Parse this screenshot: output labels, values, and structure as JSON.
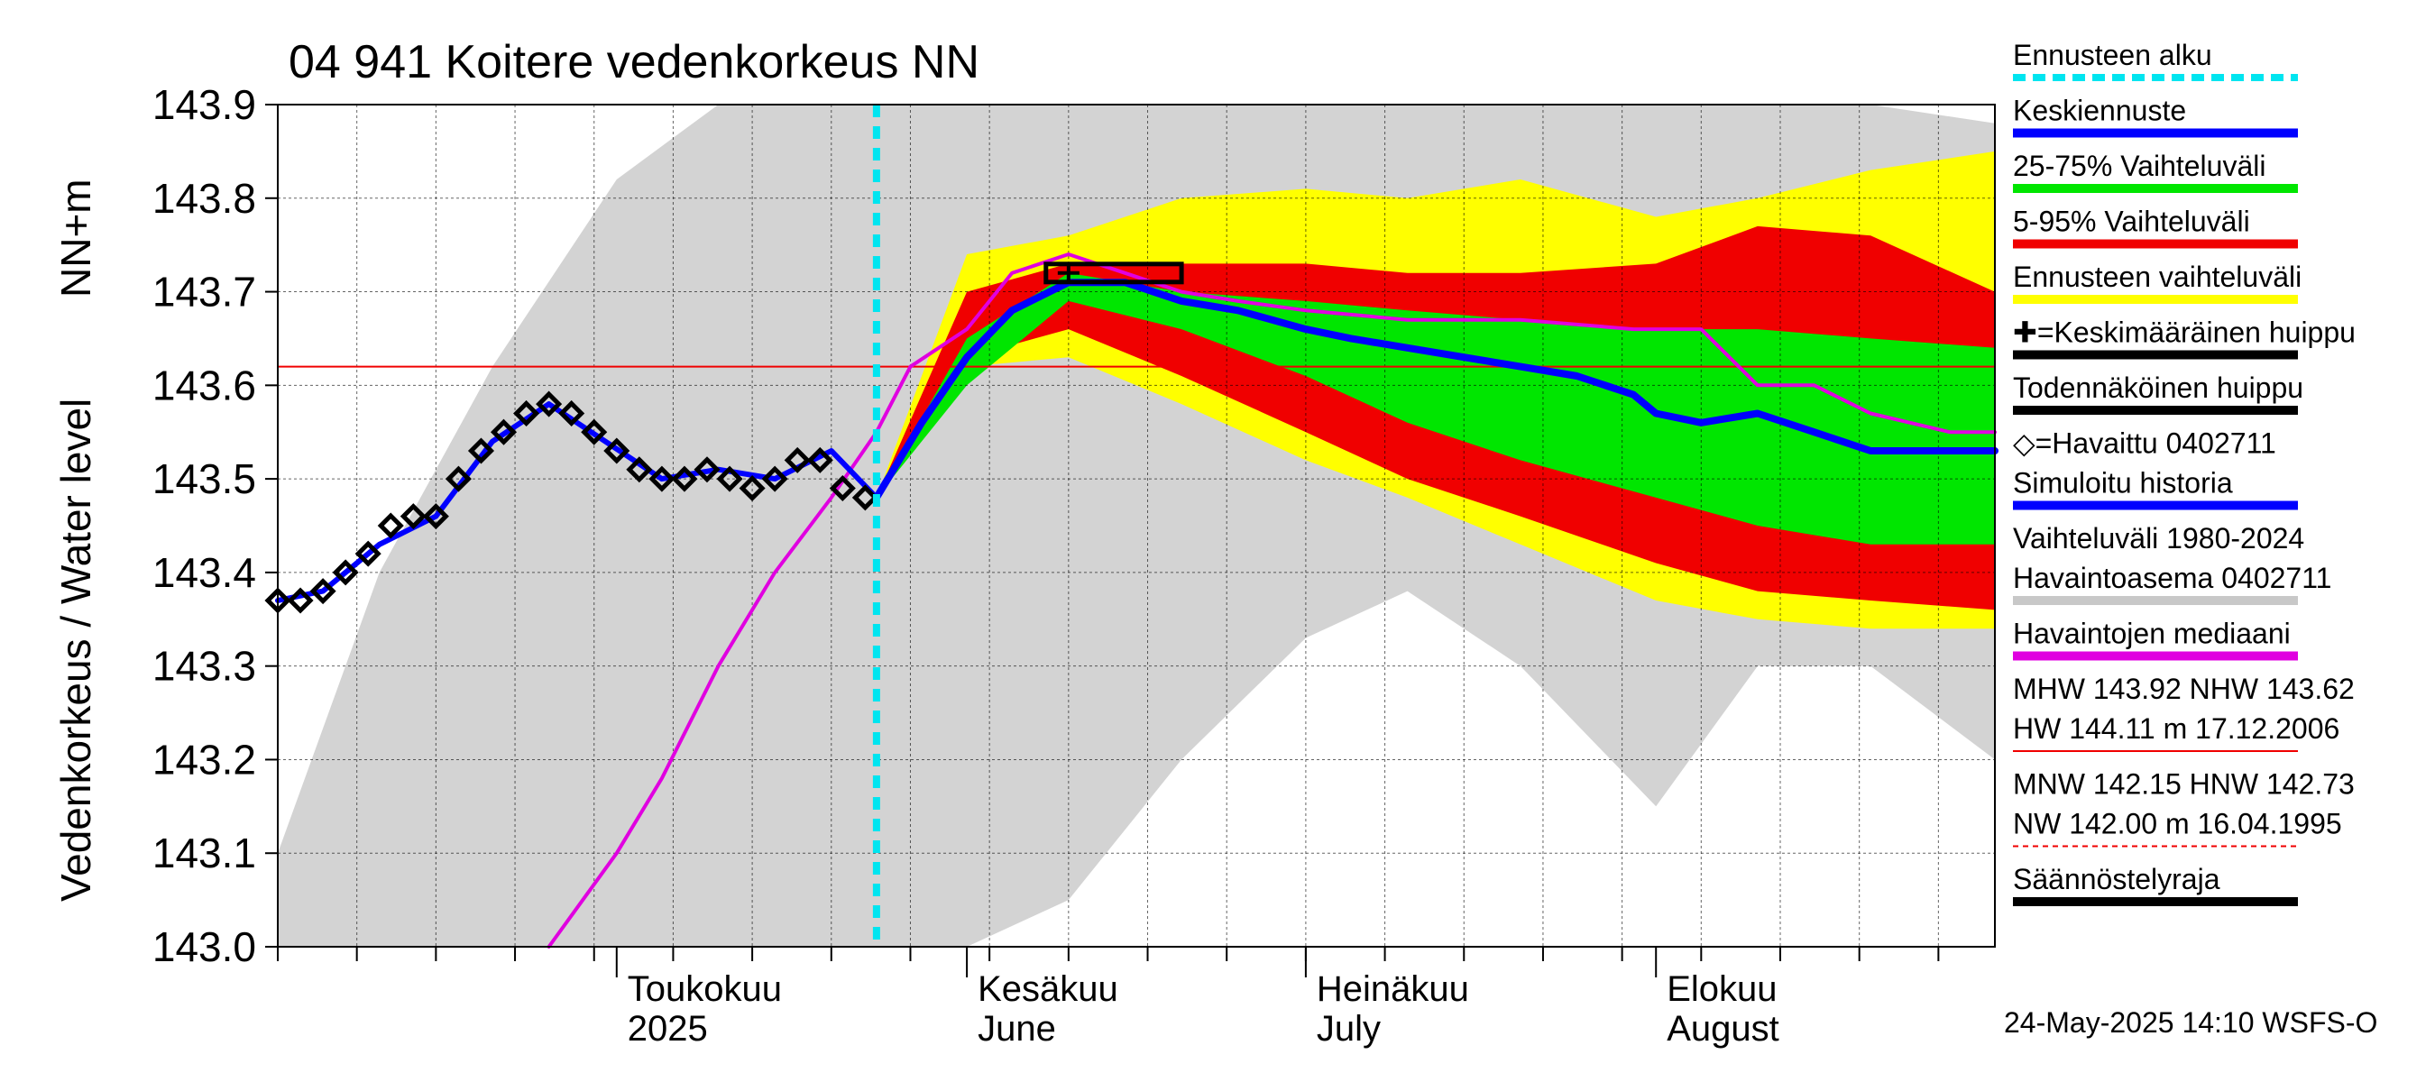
{
  "chart_data": {
    "type": "area",
    "title": "04 941 Koitere vedenkorkeus NN",
    "ylabel": "Vedenkorkeus / Water level",
    "yunit": "NN+m",
    "ylim": [
      143.0,
      143.9
    ],
    "yticks": [
      "143.0",
      "143.1",
      "143.2",
      "143.3",
      "143.4",
      "143.5",
      "143.6",
      "143.7",
      "143.8",
      "143.9"
    ],
    "xlim": [
      "2025-04-01",
      "2025-08-31"
    ],
    "month_labels": [
      {
        "date": "2025-05-01",
        "line1": "Toukokuu",
        "line2": "2025"
      },
      {
        "date": "2025-06-01",
        "line1": "Kesäkuu",
        "line2": "June"
      },
      {
        "date": "2025-07-01",
        "line1": "Heinäkuu",
        "line2": "July"
      },
      {
        "date": "2025-08-01",
        "line1": "Elokuu",
        "line2": "August"
      }
    ],
    "forecast_start": "2025-05-24",
    "reference_line": 143.62,
    "grid": true,
    "legend_position": "right",
    "legend": [
      {
        "label": "Ennusteen alku",
        "color": "#00e5f0",
        "style": "dashed"
      },
      {
        "label": "Keskiennuste",
        "color": "#0000ff",
        "style": "thick"
      },
      {
        "label": "25-75% Vaihteluväli",
        "color": "#00e600",
        "style": "thick"
      },
      {
        "label": "5-95% Vaihteluväli",
        "color": "#f00000",
        "style": "thick"
      },
      {
        "label": "Ennusteen vaihteluväli",
        "color": "#ffff00",
        "style": "thick"
      },
      {
        "label": "✚=Keskimääräinen huippu",
        "color": "#000000",
        "style": "thick"
      },
      {
        "label": "Todennäköinen huippu",
        "color": "#000000",
        "style": "thick"
      },
      {
        "label": "◇=Havaittu 0402711",
        "color": "",
        "style": "none"
      },
      {
        "label": "Simuloitu historia",
        "color": "#0000ff",
        "style": "thick"
      },
      {
        "label": "Vaihteluväli 1980-2024",
        "color": "",
        "style": "none"
      },
      {
        "label": " Havaintoasema 0402711",
        "color": "#c8c8c8",
        "style": "thick"
      },
      {
        "label": "Havaintojen mediaani",
        "color": "#e000e0",
        "style": "thick"
      },
      {
        "label": "MHW 143.92 NHW 143.62",
        "color": "",
        "style": "none"
      },
      {
        "label": "HW 144.11 m 17.12.2006",
        "color": "#f00000",
        "style": "thin"
      },
      {
        "label": "MNW 142.15 HNW 142.73",
        "color": "",
        "style": "none"
      },
      {
        "label": "NW 142.00 m 16.04.1995",
        "color": "#f00000",
        "style": "dotted"
      },
      {
        "label": "Säännöstelyraja",
        "color": "#000000",
        "style": "thick"
      }
    ],
    "colors": {
      "historical_range": "#d3d3d3",
      "forecast_range": "#ffff00",
      "band_5_95": "#f00000",
      "band_25_75": "#00e600",
      "mean_forecast": "#0000ff",
      "median": "#e000e0",
      "forecast_start": "#00e5f0",
      "reference": "#f00000"
    },
    "historical_range": {
      "x": [
        "2025-04-01",
        "2025-04-10",
        "2025-04-20",
        "2025-05-01",
        "2025-05-10",
        "2025-05-20",
        "2025-05-24",
        "2025-06-01",
        "2025-06-10",
        "2025-06-20",
        "2025-07-01",
        "2025-07-10",
        "2025-07-20",
        "2025-08-01",
        "2025-08-10",
        "2025-08-20",
        "2025-08-31"
      ],
      "high": [
        143.1,
        143.4,
        143.62,
        143.82,
        143.9,
        143.9,
        143.9,
        143.9,
        143.9,
        143.9,
        143.9,
        143.9,
        143.9,
        143.9,
        143.9,
        143.9,
        143.88
      ],
      "low": [
        143.0,
        143.0,
        143.0,
        143.0,
        143.0,
        143.0,
        143.0,
        143.0,
        143.05,
        143.2,
        143.33,
        143.38,
        143.3,
        143.15,
        143.3,
        143.3,
        143.2
      ]
    },
    "forecast_range": {
      "x": [
        "2025-05-24",
        "2025-06-01",
        "2025-06-10",
        "2025-06-20",
        "2025-07-01",
        "2025-07-10",
        "2025-07-20",
        "2025-08-01",
        "2025-08-10",
        "2025-08-20",
        "2025-08-31"
      ],
      "high": [
        143.48,
        143.74,
        143.76,
        143.8,
        143.81,
        143.8,
        143.82,
        143.78,
        143.8,
        143.83,
        143.85
      ],
      "low": [
        143.48,
        143.62,
        143.63,
        143.58,
        143.52,
        143.48,
        143.43,
        143.37,
        143.35,
        143.34,
        143.34
      ]
    },
    "band_5_95": {
      "x": [
        "2025-05-24",
        "2025-06-01",
        "2025-06-10",
        "2025-06-20",
        "2025-07-01",
        "2025-07-10",
        "2025-07-20",
        "2025-08-01",
        "2025-08-10",
        "2025-08-20",
        "2025-08-31"
      ],
      "high": [
        143.48,
        143.7,
        143.73,
        143.73,
        143.73,
        143.72,
        143.72,
        143.73,
        143.77,
        143.76,
        143.7
      ],
      "low": [
        143.48,
        143.63,
        143.66,
        143.61,
        143.55,
        143.5,
        143.46,
        143.41,
        143.38,
        143.37,
        143.36
      ]
    },
    "band_25_75": {
      "x": [
        "2025-05-24",
        "2025-06-01",
        "2025-06-10",
        "2025-06-20",
        "2025-07-01",
        "2025-07-10",
        "2025-07-20",
        "2025-08-01",
        "2025-08-10",
        "2025-08-20",
        "2025-08-31"
      ],
      "high": [
        143.48,
        143.65,
        143.72,
        143.7,
        143.69,
        143.68,
        143.67,
        143.66,
        143.66,
        143.65,
        143.64
      ],
      "low": [
        143.48,
        143.6,
        143.69,
        143.66,
        143.61,
        143.56,
        143.52,
        143.48,
        143.45,
        143.43,
        143.43
      ]
    },
    "observed": {
      "x": [
        "2025-04-01",
        "2025-04-03",
        "2025-04-05",
        "2025-04-07",
        "2025-04-09",
        "2025-04-11",
        "2025-04-13",
        "2025-04-15",
        "2025-04-17",
        "2025-04-19",
        "2025-04-21",
        "2025-04-23",
        "2025-04-25",
        "2025-04-27",
        "2025-04-29",
        "2025-05-01",
        "2025-05-03",
        "2025-05-05",
        "2025-05-07",
        "2025-05-09",
        "2025-05-11",
        "2025-05-13",
        "2025-05-15",
        "2025-05-17",
        "2025-05-19",
        "2025-05-21",
        "2025-05-23"
      ],
      "y": [
        143.37,
        143.37,
        143.38,
        143.4,
        143.42,
        143.45,
        143.46,
        143.46,
        143.5,
        143.53,
        143.55,
        143.57,
        143.58,
        143.57,
        143.55,
        143.53,
        143.51,
        143.5,
        143.5,
        143.51,
        143.5,
        143.49,
        143.5,
        143.52,
        143.52,
        143.49,
        143.48
      ]
    },
    "simulated_history": {
      "x": [
        "2025-04-01",
        "2025-04-05",
        "2025-04-10",
        "2025-04-15",
        "2025-04-20",
        "2025-04-25",
        "2025-04-30",
        "2025-05-05",
        "2025-05-10",
        "2025-05-15",
        "2025-05-20",
        "2025-05-24"
      ],
      "y": [
        143.37,
        143.38,
        143.43,
        143.46,
        143.54,
        143.58,
        143.54,
        143.5,
        143.51,
        143.5,
        143.53,
        143.48
      ]
    },
    "mean_forecast": {
      "x": [
        "2025-05-24",
        "2025-05-28",
        "2025-06-01",
        "2025-06-05",
        "2025-06-10",
        "2025-06-15",
        "2025-06-20",
        "2025-06-25",
        "2025-07-01",
        "2025-07-05",
        "2025-07-10",
        "2025-07-15",
        "2025-07-20",
        "2025-07-25",
        "2025-07-30",
        "2025-08-01",
        "2025-08-05",
        "2025-08-10",
        "2025-08-15",
        "2025-08-20",
        "2025-08-25",
        "2025-08-31"
      ],
      "y": [
        143.48,
        143.56,
        143.63,
        143.68,
        143.71,
        143.71,
        143.69,
        143.68,
        143.66,
        143.65,
        143.64,
        143.63,
        143.62,
        143.61,
        143.59,
        143.57,
        143.56,
        143.57,
        143.55,
        143.53,
        143.53,
        143.53
      ]
    },
    "median": {
      "x": [
        "2025-04-25",
        "2025-05-01",
        "2025-05-05",
        "2025-05-10",
        "2025-05-15",
        "2025-05-20",
        "2025-05-24",
        "2025-05-27",
        "2025-06-01",
        "2025-06-05",
        "2025-06-10",
        "2025-06-15",
        "2025-06-20",
        "2025-06-25",
        "2025-07-01",
        "2025-07-10",
        "2025-07-20",
        "2025-07-30",
        "2025-08-05",
        "2025-08-10",
        "2025-08-15",
        "2025-08-20",
        "2025-08-27",
        "2025-08-31"
      ],
      "y": [
        143.0,
        143.1,
        143.18,
        143.3,
        143.4,
        143.48,
        143.55,
        143.62,
        143.66,
        143.72,
        143.74,
        143.72,
        143.7,
        143.69,
        143.68,
        143.67,
        143.67,
        143.66,
        143.66,
        143.6,
        143.6,
        143.57,
        143.55,
        143.55
      ]
    },
    "probable_peak": {
      "x_start": "2025-06-08",
      "x_end": "2025-06-20",
      "y": 143.72
    },
    "mean_peak": {
      "x": "2025-06-10",
      "y": 143.72
    }
  },
  "footer": {
    "timestamp": "24-May-2025 14:10 WSFS-O"
  }
}
